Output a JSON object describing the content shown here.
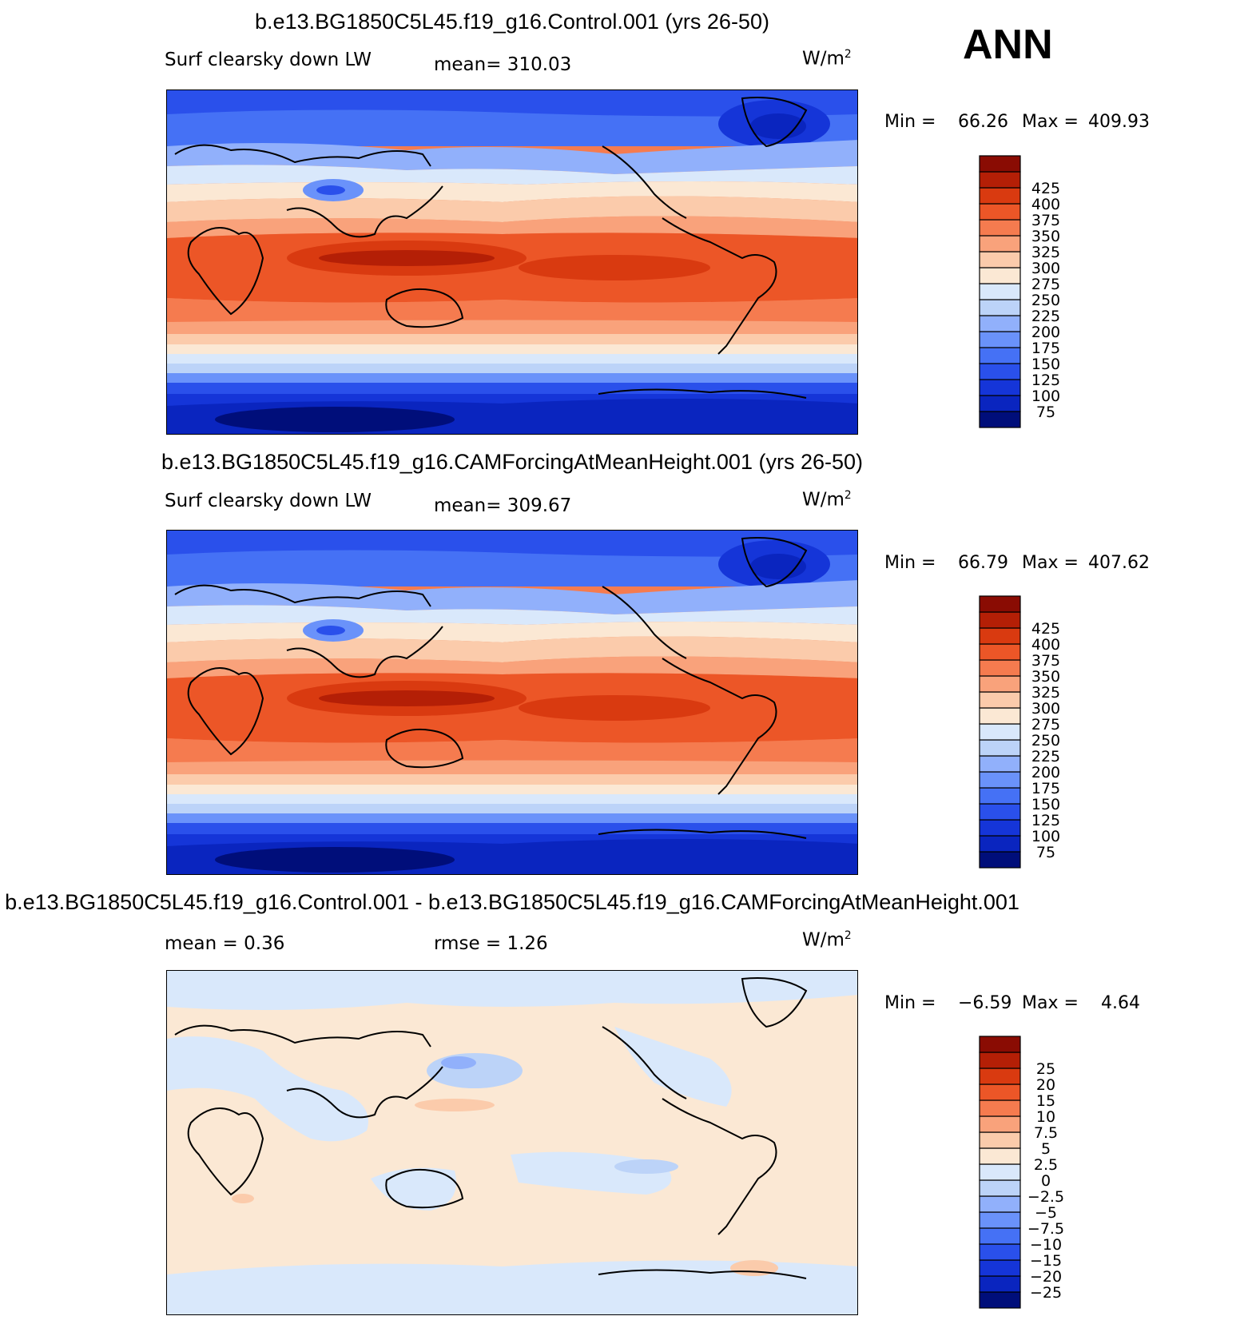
{
  "season": "ANN",
  "units_base": "W/m",
  "units_exp": "2",
  "panels": [
    {
      "id": "control",
      "title": "b.e13.BG1850C5L45.f19_g16.Control.001 (yrs 26-50)",
      "variable": "Surf clearsky down LW",
      "stat_left": "",
      "stat_mid": "mean= 310.03",
      "min_label": "Min =",
      "min_value": "66.26",
      "max_label": "Max =",
      "max_value": "409.93"
    },
    {
      "id": "case",
      "title": "b.e13.BG1850C5L45.f19_g16.CAMForcingAtMeanHeight.001 (yrs 26-50)",
      "variable": "Surf clearsky down LW",
      "stat_left": "",
      "stat_mid": "mean= 309.67",
      "min_label": "Min =",
      "min_value": "66.79",
      "max_label": "Max =",
      "max_value": "407.62"
    },
    {
      "id": "diff",
      "title": "b.e13.BG1850C5L45.f19_g16.Control.001 - b.e13.BG1850C5L45.f19_g16.CAMForcingAtMeanHeight.001",
      "variable": "",
      "stat_left": "mean =    0.36",
      "stat_mid": "rmse =    1.26",
      "min_label": "Min =",
      "min_value": "−6.59",
      "max_label": "Max =",
      "max_value": "4.64"
    }
  ],
  "chart_data": [
    {
      "type": "heatmap",
      "title": "b.e13.BG1850C5L45.f19_g16.Control.001 (yrs 26-50)",
      "variable": "Surf clearsky down LW",
      "units": "W/m2",
      "mean": 310.03,
      "min": 66.26,
      "max": 409.93,
      "colorbar_levels": [
        75,
        100,
        125,
        150,
        175,
        200,
        225,
        250,
        275,
        300,
        325,
        350,
        375,
        400,
        425
      ],
      "colorbar_colors": [
        "#000e7a",
        "#0a25bf",
        "#1535d8",
        "#2a50eb",
        "#4571f5",
        "#6a92fa",
        "#91b0fb",
        "#bcd3f8",
        "#d9e8fb",
        "#fbe8d4",
        "#fbcbab",
        "#f9a27b",
        "#f57b4f",
        "#ec5627",
        "#d93a10",
        "#b41f06",
        "#8a0c03"
      ]
    },
    {
      "type": "heatmap",
      "title": "b.e13.BG1850C5L45.f19_g16.CAMForcingAtMeanHeight.001 (yrs 26-50)",
      "variable": "Surf clearsky down LW",
      "units": "W/m2",
      "mean": 309.67,
      "min": 66.79,
      "max": 407.62,
      "colorbar_levels": [
        75,
        100,
        125,
        150,
        175,
        200,
        225,
        250,
        275,
        300,
        325,
        350,
        375,
        400,
        425
      ],
      "colorbar_colors": [
        "#000e7a",
        "#0a25bf",
        "#1535d8",
        "#2a50eb",
        "#4571f5",
        "#6a92fa",
        "#91b0fb",
        "#bcd3f8",
        "#d9e8fb",
        "#fbe8d4",
        "#fbcbab",
        "#f9a27b",
        "#f57b4f",
        "#ec5627",
        "#d93a10",
        "#b41f06",
        "#8a0c03"
      ]
    },
    {
      "type": "heatmap",
      "title": "b.e13.BG1850C5L45.f19_g16.Control.001 - b.e13.BG1850C5L45.f19_g16.CAMForcingAtMeanHeight.001",
      "units": "W/m2",
      "mean": 0.36,
      "rmse": 1.26,
      "min": -6.59,
      "max": 4.64,
      "colorbar_levels": [
        -25,
        -20,
        -15,
        -10,
        -7.5,
        -5,
        -2.5,
        0,
        2.5,
        5,
        7.5,
        10,
        15,
        20,
        25
      ],
      "colorbar_labels": [
        "−25",
        "−20",
        "−15",
        "−10",
        "−7.5",
        "−5",
        "−2.5",
        "0",
        "2.5",
        "5",
        "7.5",
        "10",
        "15",
        "20",
        "25"
      ],
      "colorbar_colors": [
        "#000e7a",
        "#0a25bf",
        "#1535d8",
        "#2a50eb",
        "#4571f5",
        "#6a92fa",
        "#91b0fb",
        "#bcd3f8",
        "#d9e8fb",
        "#fbe8d4",
        "#fbcbab",
        "#f9a27b",
        "#f57b4f",
        "#ec5627",
        "#d93a10",
        "#b41f06",
        "#8a0c03"
      ]
    }
  ]
}
